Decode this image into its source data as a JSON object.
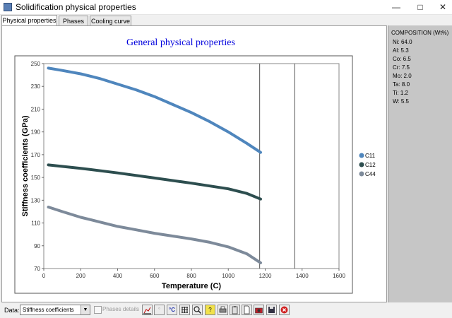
{
  "window": {
    "title": "Solidification physical properties"
  },
  "tabs": [
    {
      "label": "Physical properties"
    },
    {
      "label": "Phases"
    },
    {
      "label": "Cooling curve"
    }
  ],
  "composition": {
    "header": "COMPOSITION (Wt%)",
    "items": [
      "Ni: 64.0",
      "Al: 5.3",
      "Co: 6.5",
      "Cr: 7.5",
      "Mo: 2.0",
      "Ta: 8.0",
      "Ti: 1.2",
      "W: 5.5"
    ]
  },
  "bottom": {
    "data_label": "Data:",
    "data_value": "Stiffness coefficients",
    "phases_details_label": "Phases details",
    "unit_label": "°C"
  },
  "chart_data": {
    "type": "line",
    "title": "General physical properties",
    "xlabel": "Temperature (C)",
    "ylabel": "Stiffness coefficients (GPa)",
    "xlim": [
      0,
      1600
    ],
    "ylim": [
      70,
      250
    ],
    "xticks": [
      0,
      200,
      400,
      600,
      800,
      1000,
      1200,
      1400,
      1600
    ],
    "yticks": [
      70,
      90,
      110,
      130,
      150,
      170,
      190,
      210,
      230,
      250
    ],
    "vlines": [
      1170,
      1360
    ],
    "legend_position": "right",
    "grid": false,
    "series": [
      {
        "name": "C11",
        "color": "#4f86bd",
        "x": [
          25,
          100,
          200,
          300,
          400,
          500,
          600,
          700,
          800,
          900,
          1000,
          1100,
          1175
        ],
        "y": [
          246,
          244,
          241,
          237,
          232,
          227,
          221,
          214,
          207,
          199,
          190,
          180,
          172
        ]
      },
      {
        "name": "C12",
        "color": "#2d4e4f",
        "x": [
          25,
          200,
          400,
          600,
          800,
          1000,
          1100,
          1175
        ],
        "y": [
          161,
          158,
          154,
          149.5,
          145,
          140,
          136,
          131
        ]
      },
      {
        "name": "C44",
        "color": "#7d8a9a",
        "x": [
          25,
          100,
          200,
          300,
          400,
          500,
          600,
          700,
          800,
          900,
          1000,
          1100,
          1175
        ],
        "y": [
          124,
          120,
          115,
          111,
          107,
          104,
          101,
          98.5,
          96,
          93,
          89,
          83,
          75
        ]
      }
    ]
  }
}
